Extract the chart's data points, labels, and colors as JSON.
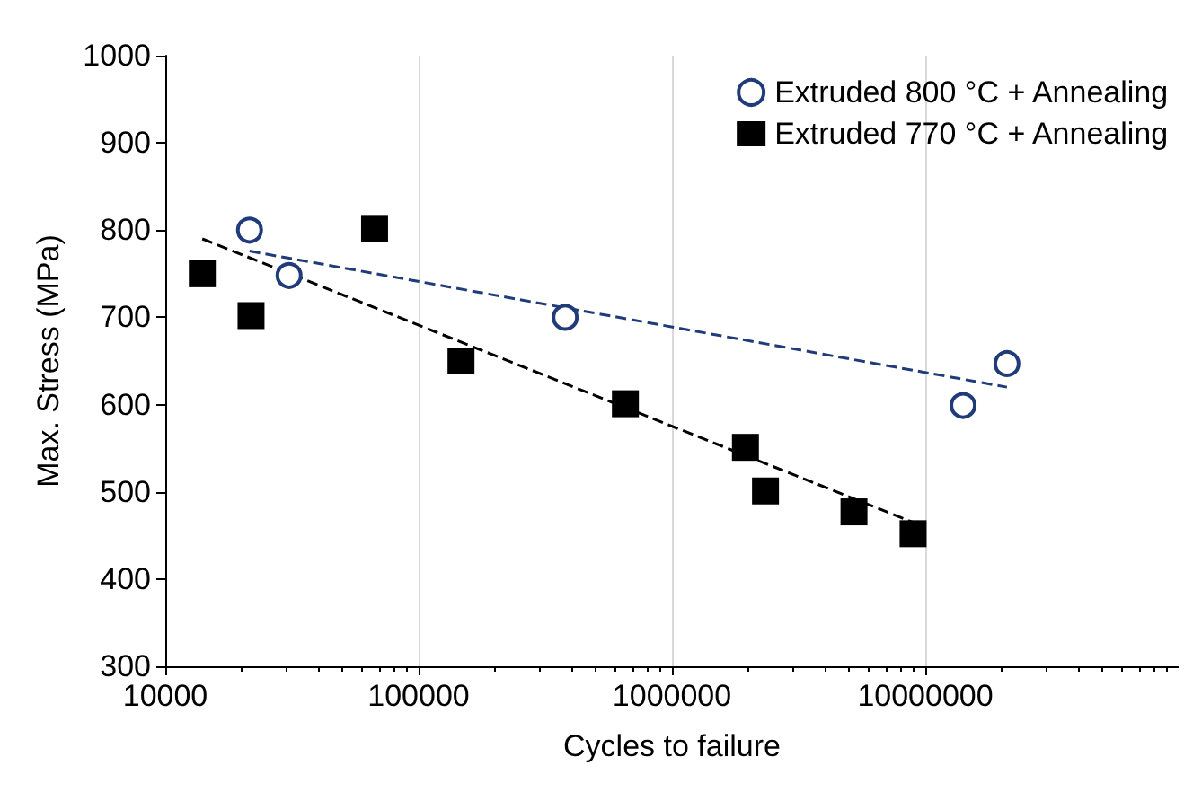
{
  "chart_data": {
    "type": "scatter",
    "xlabel": "Cycles to failure",
    "ylabel": "Max. Stress (MPa)",
    "log": "x",
    "xlim": [
      10000,
      100000000
    ],
    "xticks": [
      10000,
      100000,
      1000000,
      10000000
    ],
    "ylim": [
      300,
      1000
    ],
    "yticks": [
      300,
      400,
      500,
      600,
      700,
      800,
      900,
      1000
    ],
    "grid": "x",
    "legend": "top right",
    "series": [
      {
        "name": "Extruded 800 °C + Annealing",
        "color": "#1f3b7a",
        "marker": "circle",
        "x": [
          21500,
          30800,
          379000,
          14100000,
          21000000
        ],
        "values": [
          800,
          748,
          700,
          599,
          647
        ]
      },
      {
        "name": "Extruded 770 °C + Annealing",
        "color": "#000000",
        "marker": "square",
        "x": [
          14000,
          21800,
          67000,
          147000,
          655000,
          1950000,
          2340000,
          5230000,
          8950000
        ],
        "values": [
          750,
          702,
          802,
          650,
          601,
          551,
          501,
          477,
          452
        ]
      },
      {
        "type": "line",
        "color": "#1f3b7a",
        "line_style": "dashed",
        "marker": "none",
        "x": [
          21500,
          21000000
        ],
        "values": [
          776,
          620
        ]
      },
      {
        "type": "line",
        "color": "#000000",
        "line_style": "dashed",
        "marker": "none",
        "x": [
          14000,
          8950000
        ],
        "values": [
          790,
          465
        ]
      }
    ]
  }
}
